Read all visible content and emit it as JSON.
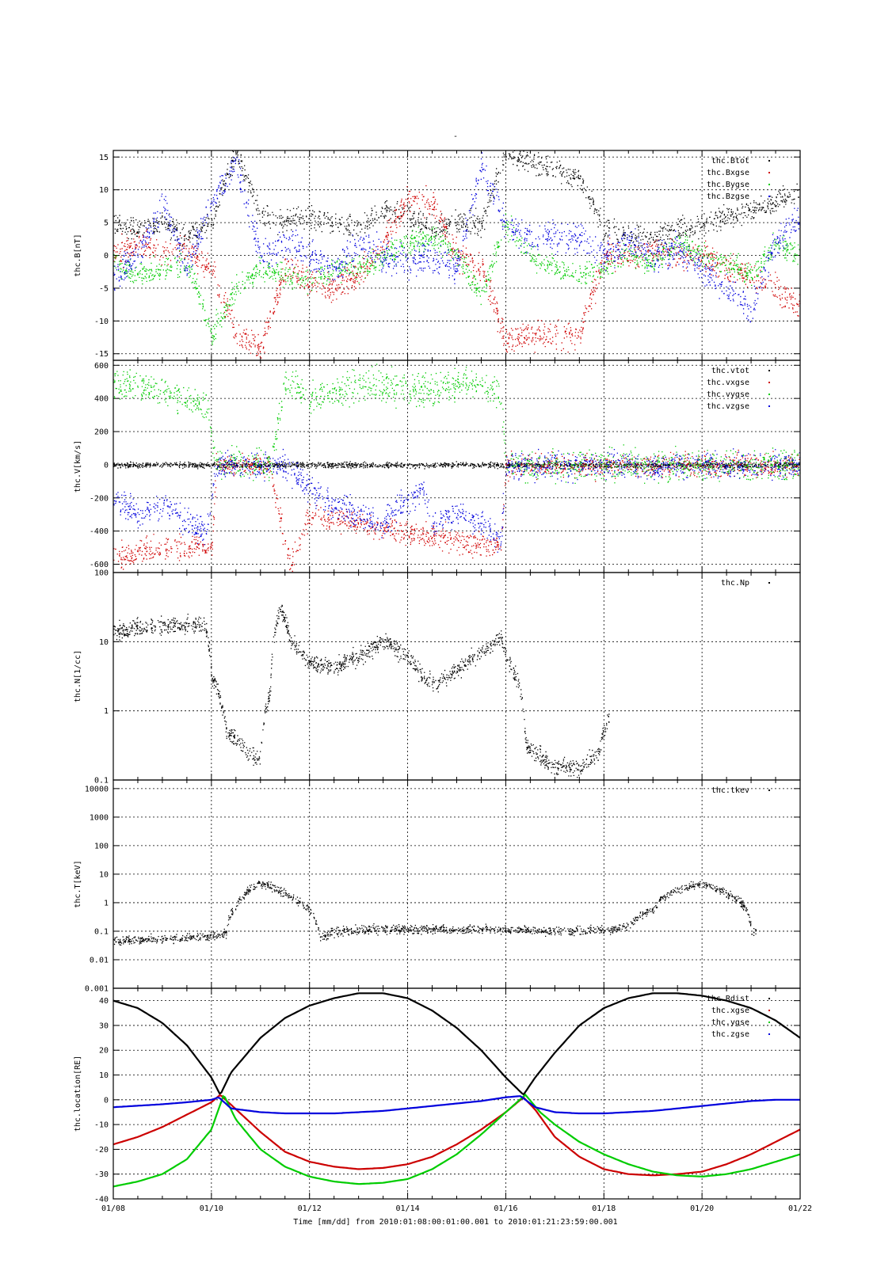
{
  "figure": {
    "title": "-",
    "time_axis": {
      "start_day": "01/08",
      "ticks": [
        "01/08",
        "01/10",
        "01/12",
        "01/14",
        "01/16",
        "01/18",
        "01/20",
        "01/22"
      ],
      "label": "Time [mm/dd]  from 2010:01:08:00:01:00.001  to  2010:01:21:23:59:00.001"
    }
  },
  "chart_data": [
    {
      "type": "scatter",
      "ylabel": "thc.B[nT]",
      "scale": "linear",
      "ylim": [
        -16,
        16
      ],
      "yticks": [
        {
          "v": 15,
          "label": "15"
        },
        {
          "v": 10,
          "label": "10"
        },
        {
          "v": 5,
          "label": "5"
        },
        {
          "v": 0,
          "label": "0"
        },
        {
          "v": -5,
          "label": "-5"
        },
        {
          "v": -10,
          "label": "-10"
        },
        {
          "v": -15,
          "label": "-15"
        }
      ],
      "grid": true,
      "legend_position": "top-right",
      "legend": [
        "thc.Btot",
        "thc.Bxgse",
        "thc.Bygse",
        "thc.Bzgse"
      ],
      "series": [
        {
          "name": "thc.Btot",
          "color": "#000000",
          "x": [
            0,
            0.5,
            1,
            1.5,
            2,
            2.5,
            3,
            3.5,
            4,
            4.5,
            5,
            5.5,
            6,
            6.5,
            7,
            7.5,
            8,
            8.5,
            9,
            9.5,
            10,
            10.5,
            11,
            11.5,
            12,
            12.5,
            13,
            13.5,
            14
          ],
          "y": [
            5,
            4,
            5,
            3,
            5,
            16,
            6,
            5,
            6,
            5,
            4,
            7,
            6,
            4,
            5,
            5,
            16,
            14,
            13,
            12,
            4,
            3,
            3,
            4,
            5,
            6,
            7,
            8,
            10
          ],
          "noise": 1.5
        },
        {
          "name": "thc.Bxgse",
          "color": "#d00000",
          "x": [
            0,
            0.5,
            1,
            1.5,
            2,
            2.5,
            3,
            3.5,
            4,
            4.5,
            5,
            5.5,
            6,
            6.5,
            7,
            7.5,
            8,
            8.5,
            9,
            9.5,
            10,
            10.5,
            11,
            11.5,
            12,
            12.5,
            13,
            13.5,
            14
          ],
          "y": [
            0,
            2,
            0,
            1,
            -2,
            -12,
            -14,
            -2,
            -4,
            -5,
            -3,
            2,
            9,
            8,
            0,
            -2,
            -13,
            -12,
            -12,
            -12,
            0,
            0,
            1,
            0,
            0,
            -2,
            -3,
            -5,
            -8
          ],
          "noise": 1.8
        },
        {
          "name": "thc.Bygse",
          "color": "#00cc00",
          "x": [
            0,
            0.5,
            1,
            1.5,
            2,
            2.5,
            3,
            3.5,
            4,
            4.5,
            5,
            5.5,
            6,
            6.5,
            7,
            7.5,
            8,
            8.5,
            9,
            9.5,
            10,
            10.5,
            11,
            11.5,
            12,
            12.5,
            13,
            13.5,
            14
          ],
          "y": [
            -1,
            -3,
            -2,
            -1,
            -12,
            -5,
            -2,
            -3,
            -4,
            -2,
            -2,
            0,
            2,
            3,
            0,
            -6,
            5,
            0,
            -2,
            -3,
            -2,
            0,
            -1,
            2,
            0,
            -1,
            -3,
            2,
            0
          ],
          "noise": 1.5
        },
        {
          "name": "thc.Bzgse",
          "color": "#0000dd",
          "x": [
            0,
            0.5,
            1,
            1.5,
            2,
            2.5,
            3,
            3.5,
            4,
            4.5,
            5,
            5.5,
            6,
            6.5,
            7,
            7.5,
            8,
            8.5,
            9,
            9.5,
            10,
            10.5,
            11,
            11.5,
            12,
            12.5,
            13,
            13.5,
            14
          ],
          "y": [
            -3,
            0,
            8,
            -2,
            8,
            14,
            0,
            2,
            0,
            -2,
            2,
            0,
            -1,
            0,
            -2,
            14,
            4,
            3,
            3,
            3,
            0,
            2,
            0,
            1,
            -2,
            -5,
            -8,
            2,
            6
          ],
          "noise": 2.0
        }
      ]
    },
    {
      "type": "scatter",
      "ylabel": "thc.V[km/s]",
      "scale": "linear",
      "ylim": [
        -650,
        630
      ],
      "yticks": [
        {
          "v": 600,
          "label": "600"
        },
        {
          "v": 400,
          "label": "400"
        },
        {
          "v": 200,
          "label": "200"
        },
        {
          "v": 0,
          "label": "0"
        },
        {
          "v": -200,
          "label": "-200"
        },
        {
          "v": -400,
          "label": "-400"
        },
        {
          "v": -600,
          "label": "-600"
        }
      ],
      "grid": true,
      "legend_position": "top-right",
      "legend": [
        "thc.vtot",
        "thc.vxgse",
        "thc.vygse",
        "thc.vzgse"
      ],
      "series": [
        {
          "name": "thc.vtot",
          "color": "#000000",
          "x": [
            0,
            2,
            2.1,
            3.2,
            3.3,
            7.9,
            8.0,
            10.0,
            10.1,
            14
          ],
          "y": [
            0,
            0,
            0,
            0,
            0,
            0,
            0,
            0,
            0,
            0
          ],
          "noise": 15
        },
        {
          "name": "thc.vxgse",
          "color": "#d00000",
          "x": [
            0,
            1,
            2,
            2.1,
            3.2,
            3.3,
            3.6,
            4,
            7.9,
            8.0,
            10.0,
            10.1,
            14
          ],
          "y": [
            -550,
            -500,
            -500,
            0,
            0,
            -200,
            -600,
            -300,
            -500,
            0,
            0,
            0,
            0
          ],
          "noise": 60
        },
        {
          "name": "thc.vygse",
          "color": "#00cc00",
          "x": [
            0,
            1,
            1.9,
            2.1,
            3.2,
            3.5,
            4,
            5,
            6.2,
            7.5,
            7.9,
            8.0,
            10.0,
            10.1,
            14
          ],
          "y": [
            500,
            450,
            350,
            0,
            0,
            500,
            400,
            500,
            450,
            500,
            400,
            0,
            0,
            0,
            0
          ],
          "noise": 80
        },
        {
          "name": "thc.vzgse",
          "color": "#0000dd",
          "x": [
            0,
            0.5,
            1,
            1.5,
            1.9,
            2.1,
            3.2,
            3.5,
            4,
            4.5,
            5,
            5.5,
            6,
            6.3,
            6.5,
            7,
            7.5,
            7.9,
            8.0,
            10.0,
            10.1,
            14
          ],
          "y": [
            -200,
            -300,
            -250,
            -350,
            -400,
            0,
            0,
            0,
            -150,
            -250,
            -300,
            -350,
            -200,
            -150,
            -350,
            -300,
            -350,
            -450,
            0,
            0,
            0,
            0
          ],
          "noise": 70
        }
      ]
    },
    {
      "type": "scatter",
      "ylabel": "thc.N[1/cc]",
      "scale": "log",
      "ylim": [
        0.1,
        100
      ],
      "yticks": [
        {
          "v": 100,
          "label": "100"
        },
        {
          "v": 10,
          "label": "10"
        },
        {
          "v": 1,
          "label": "1"
        },
        {
          "v": 0.1,
          "label": "0.1"
        }
      ],
      "grid": true,
      "legend_position": "top-right",
      "legend": [
        "thc.Np"
      ],
      "series": [
        {
          "name": "thc.Np",
          "color": "#000000",
          "x": [
            0,
            0.5,
            1,
            1.5,
            1.85,
            2,
            2.3,
            2.7,
            3.0,
            3.2,
            3.4,
            3.6,
            4,
            4.5,
            5,
            5.5,
            6,
            6.3,
            6.6,
            7,
            7.5,
            7.9,
            8.0,
            8.4,
            9,
            9.5,
            9.9,
            10.1
          ],
          "y": [
            14,
            16,
            17,
            17,
            18,
            3,
            0.5,
            0.25,
            0.2,
            2,
            30,
            10,
            5,
            4.5,
            6,
            10,
            6,
            3,
            2.5,
            4,
            7,
            12,
            6,
            0.3,
            0.15,
            0.15,
            0.25,
            0.8
          ],
          "noise": 0.08
        }
      ]
    },
    {
      "type": "scatter",
      "ylabel": "thc.T[keV]",
      "scale": "log",
      "ylim": [
        0.001,
        20000
      ],
      "yticks": [
        {
          "v": 10000,
          "label": "10000"
        },
        {
          "v": 1000,
          "label": "1000"
        },
        {
          "v": 100,
          "label": "100"
        },
        {
          "v": 10,
          "label": "10"
        },
        {
          "v": 1,
          "label": "1"
        },
        {
          "v": 0.1,
          "label": "0.1"
        },
        {
          "v": 0.01,
          "label": "0.01"
        },
        {
          "v": 0.001,
          "label": "0.001"
        }
      ],
      "grid": true,
      "legend_position": "top-right",
      "legend": [
        "thc.tkev"
      ],
      "series": [
        {
          "name": "thc.tkev",
          "color": "#000000",
          "x": [
            0,
            0.5,
            1,
            1.5,
            2,
            2.3,
            2.5,
            2.8,
            3,
            3.5,
            3.8,
            4.2,
            4.5,
            5,
            6,
            7,
            8,
            9,
            10,
            10.5,
            11,
            11.5,
            12,
            12.5,
            12.8,
            13,
            13.1
          ],
          "y": [
            0.05,
            0.05,
            0.055,
            0.06,
            0.07,
            0.08,
            0.8,
            3,
            5,
            2,
            1,
            0.06,
            0.1,
            0.12,
            0.12,
            0.12,
            0.12,
            0.1,
            0.11,
            0.15,
            0.6,
            3,
            5,
            2,
            1,
            0.1,
            0.1
          ],
          "noise": 0.1
        }
      ]
    },
    {
      "type": "line",
      "ylabel": "thc.location[RE]",
      "scale": "linear",
      "ylim": [
        -40,
        45
      ],
      "yticks": [
        {
          "v": 40,
          "label": "40"
        },
        {
          "v": 30,
          "label": "30"
        },
        {
          "v": 20,
          "label": "20"
        },
        {
          "v": 10,
          "label": "10"
        },
        {
          "v": 0,
          "label": "0"
        },
        {
          "v": -10,
          "label": "-10"
        },
        {
          "v": -20,
          "label": "-20"
        },
        {
          "v": -30,
          "label": "-30"
        },
        {
          "v": -40,
          "label": "-40"
        }
      ],
      "grid": true,
      "legend_position": "top-right",
      "legend": [
        "thc.Rdist",
        "thc.xgse",
        "thc.ygse",
        "thc.zgse"
      ],
      "series": [
        {
          "name": "thc.Rdist",
          "color": "#000000",
          "x": [
            0,
            0.5,
            1,
            1.5,
            2,
            2.18,
            2.4,
            3,
            3.5,
            4,
            4.5,
            5,
            5.5,
            6,
            6.5,
            7,
            7.5,
            8,
            8.36,
            8.6,
            9,
            9.5,
            10,
            10.5,
            11,
            11.5,
            12,
            12.5,
            13,
            13.5,
            14
          ],
          "y": [
            40,
            37,
            31,
            22,
            9,
            2,
            11,
            25,
            33,
            38,
            41,
            43,
            43,
            41,
            36,
            29,
            20,
            9,
            2,
            9,
            19,
            30,
            37,
            41,
            43,
            43,
            42,
            40,
            37,
            32,
            25
          ]
        },
        {
          "name": "thc.xgse",
          "color": "#cc0000",
          "x": [
            0,
            0.5,
            1,
            1.5,
            2,
            2.18,
            2.4,
            3,
            3.5,
            4,
            4.5,
            5,
            5.5,
            6,
            6.5,
            7,
            7.5,
            8,
            8.36,
            8.6,
            9,
            9.5,
            10,
            10.5,
            11,
            11.5,
            12,
            12.5,
            13,
            13.5,
            14
          ],
          "y": [
            -18,
            -15,
            -11,
            -6,
            -1,
            2,
            -2,
            -13,
            -21,
            -25,
            -27,
            -28,
            -27.5,
            -26,
            -23,
            -18,
            -12,
            -5,
            1,
            -4,
            -15,
            -23,
            -28,
            -30,
            -30.5,
            -30,
            -29,
            -26,
            -22,
            -17,
            -12
          ]
        },
        {
          "name": "thc.ygse",
          "color": "#00cc00",
          "x": [
            0,
            0.5,
            1,
            1.5,
            2,
            2.25,
            2.5,
            3,
            3.5,
            4,
            4.5,
            5,
            5.5,
            6,
            6.5,
            7,
            7.5,
            8,
            8.4,
            8.7,
            9,
            9.5,
            10,
            10.5,
            11,
            11.5,
            12,
            12.5,
            13,
            13.5,
            14
          ],
          "y": [
            -35,
            -33,
            -30,
            -24,
            -12,
            2,
            -8,
            -20,
            -27,
            -31,
            -33,
            -34,
            -33.5,
            -32,
            -28,
            -22,
            -14,
            -5,
            2,
            -5,
            -10,
            -17,
            -22,
            -26,
            -29,
            -30.5,
            -31,
            -30,
            -28,
            -25,
            -22
          ]
        },
        {
          "name": "thc.zgse",
          "color": "#0000dd",
          "x": [
            0,
            0.5,
            1,
            1.5,
            2,
            2.15,
            2.4,
            3,
            3.5,
            4,
            4.5,
            5,
            5.5,
            6,
            6.5,
            7,
            7.5,
            8,
            8.3,
            8.6,
            9,
            9.5,
            10,
            10.5,
            11,
            11.5,
            12,
            12.5,
            13,
            13.5,
            14
          ],
          "y": [
            -3,
            -2.4,
            -1.8,
            -1,
            0,
            1,
            -3.5,
            -5,
            -5.5,
            -5.5,
            -5.5,
            -5,
            -4.5,
            -3.5,
            -2.5,
            -1.5,
            -0.5,
            1,
            1.5,
            -3,
            -5,
            -5.5,
            -5.5,
            -5,
            -4.5,
            -3.5,
            -2.5,
            -1.5,
            -0.5,
            0,
            0
          ]
        }
      ]
    }
  ]
}
